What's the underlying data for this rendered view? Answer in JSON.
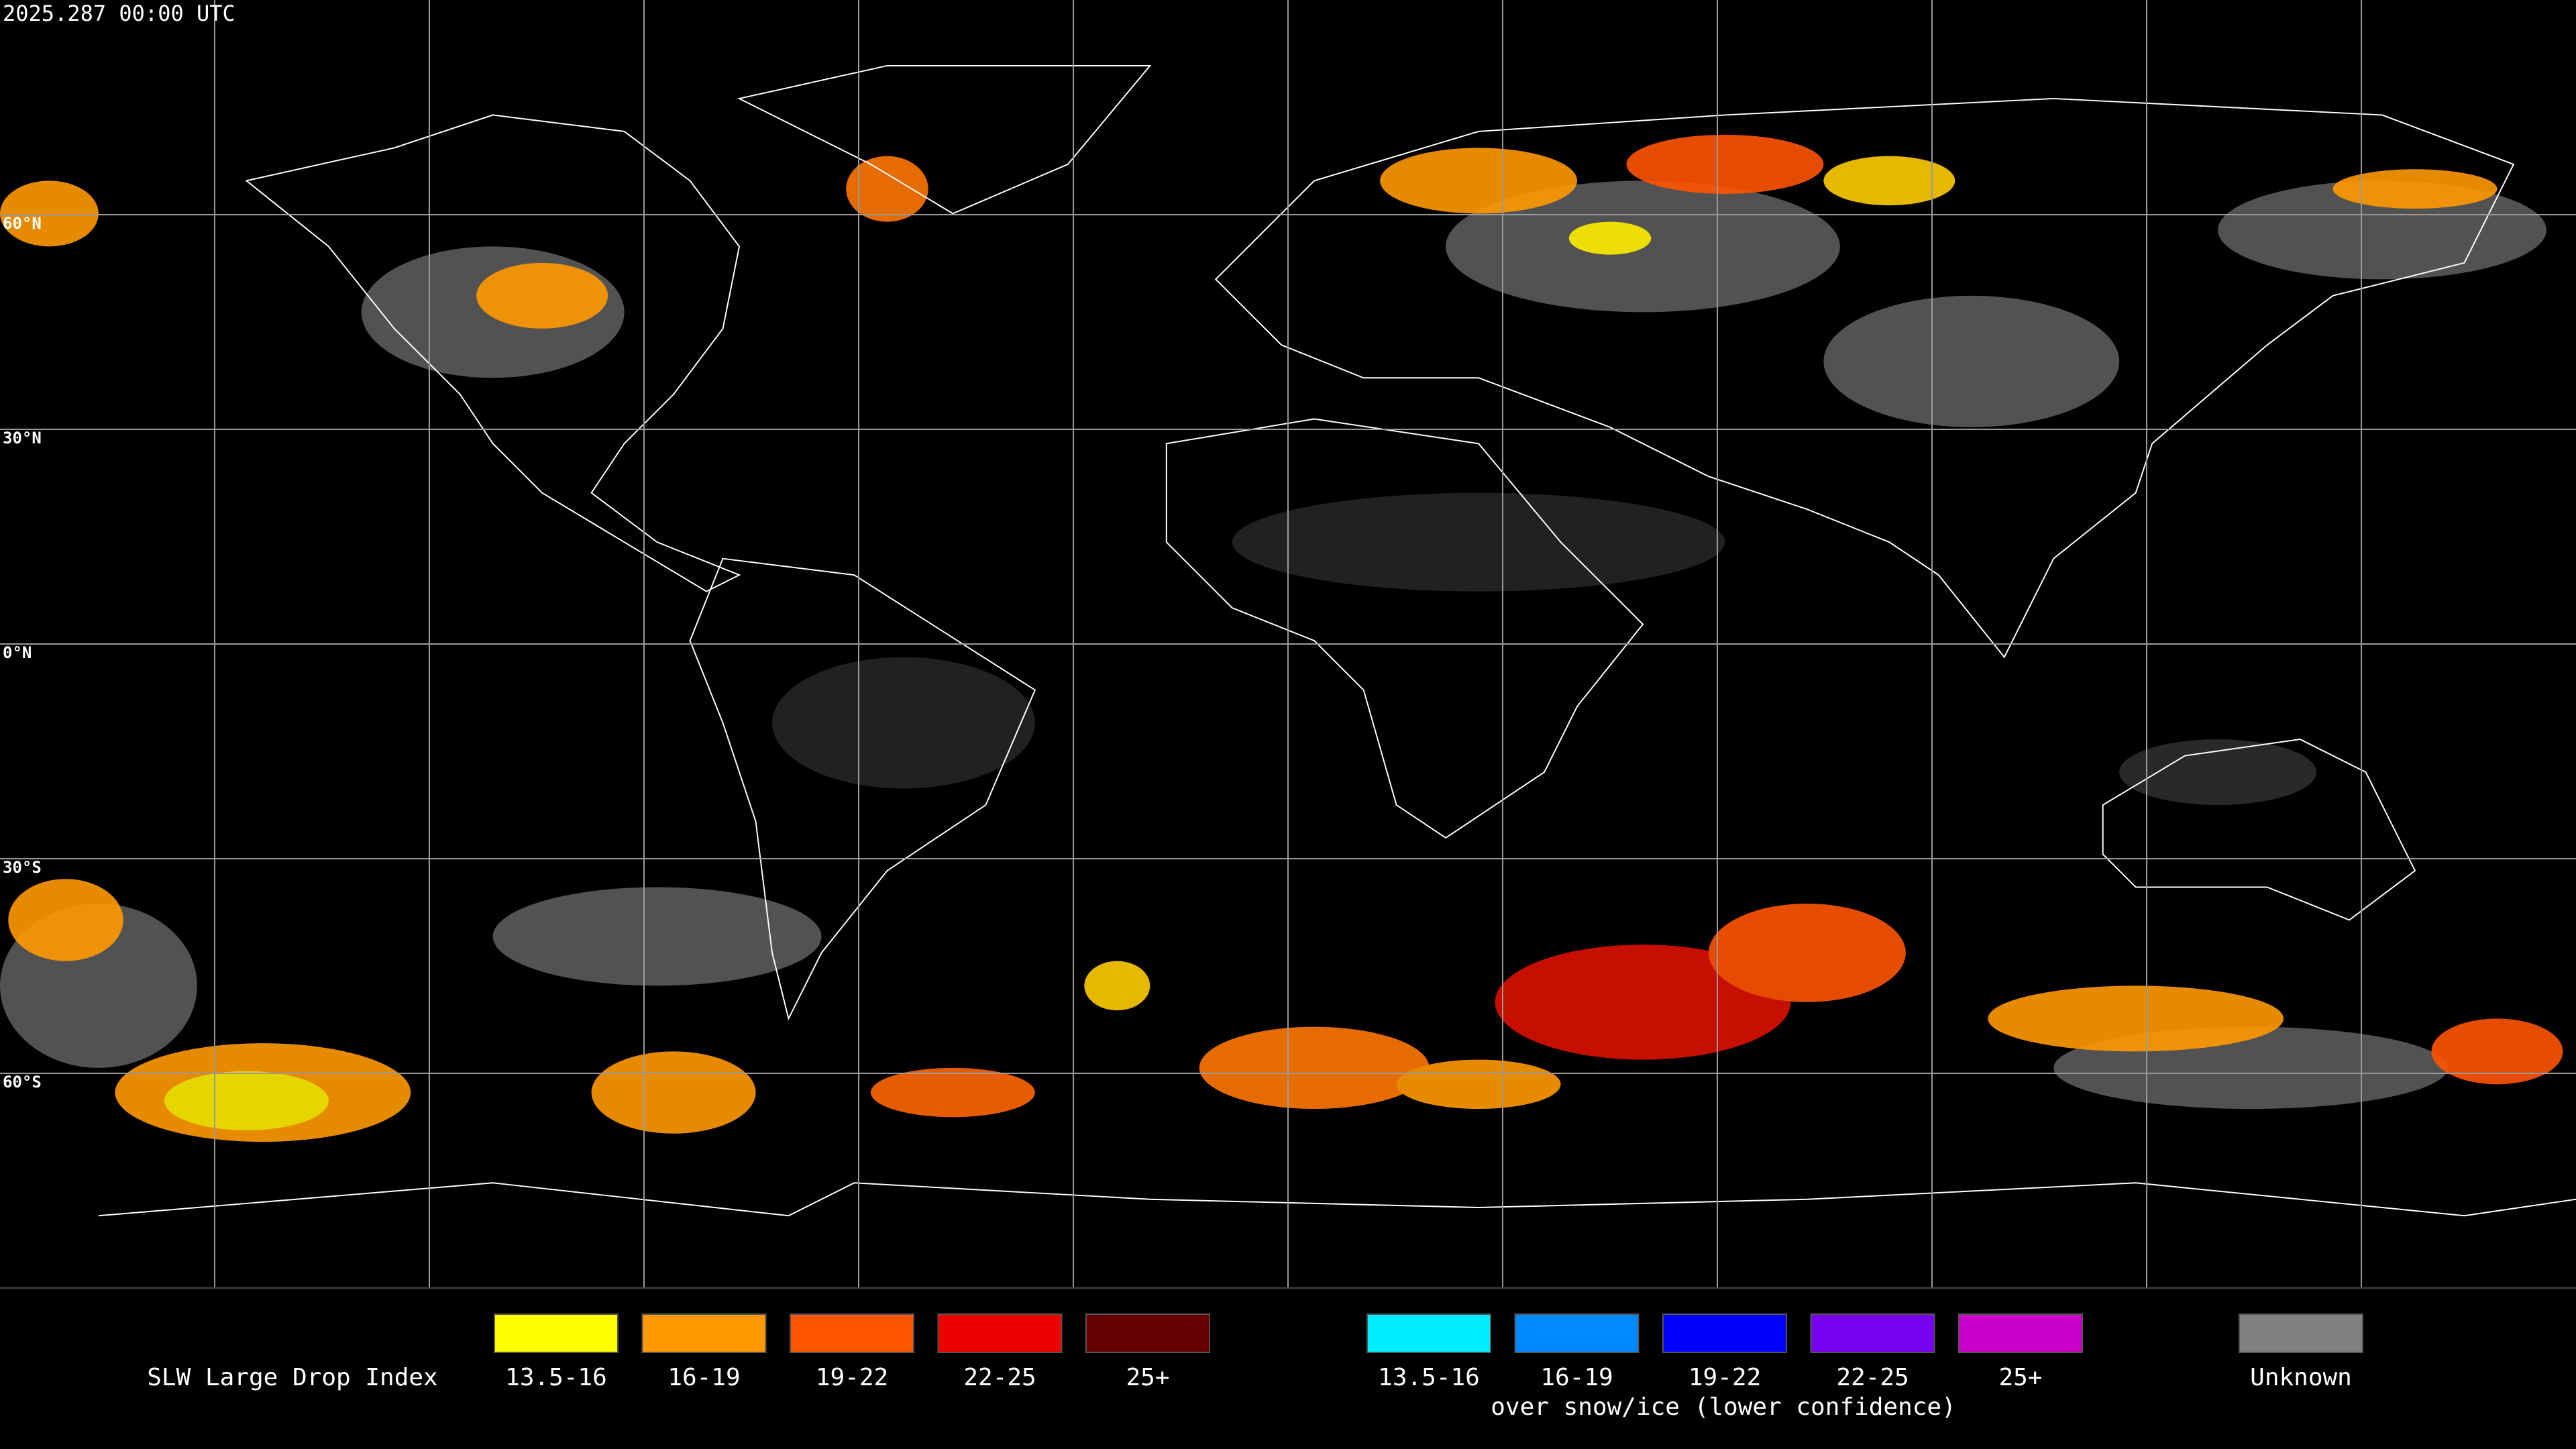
{
  "header": {
    "timestamp": "2025.287 00:00 UTC"
  },
  "map": {
    "latitude_labels": [
      "60°N",
      "30°N",
      "0°N",
      "30°S",
      "60°S"
    ]
  },
  "legend": {
    "title": "SLW Large Drop Index",
    "items": [
      {
        "label": "13.5-16",
        "color": "#ffff00"
      },
      {
        "label": "16-19",
        "color": "#ff9900"
      },
      {
        "label": "19-22",
        "color": "#ff5500"
      },
      {
        "label": "22-25",
        "color": "#ee0000"
      },
      {
        "label": "25+",
        "color": "#660000"
      }
    ],
    "snow_items": [
      {
        "label": "13.5-16",
        "color": "#00eeff"
      },
      {
        "label": "16-19",
        "color": "#0088ff"
      },
      {
        "label": "19-22",
        "color": "#0000ff"
      },
      {
        "label": "22-25",
        "color": "#7700ee"
      },
      {
        "label": "25+",
        "color": "#cc00cc"
      }
    ],
    "snow_caption": "over snow/ice (lower confidence)",
    "unknown": {
      "label": "Unknown",
      "color": "#808080"
    }
  }
}
